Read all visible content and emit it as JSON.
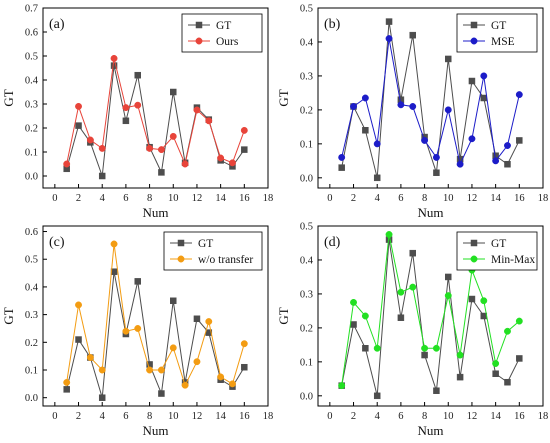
{
  "chart_data": [
    {
      "type": "line",
      "panel_label": "(a)",
      "xlabel": "Num",
      "ylabel": "GT",
      "xlim": [
        -1,
        18
      ],
      "ylim": [
        -0.05,
        0.7
      ],
      "xticks": [
        0,
        2,
        4,
        6,
        8,
        10,
        12,
        14,
        16,
        18
      ],
      "yticks": [
        0.0,
        0.1,
        0.2,
        0.3,
        0.4,
        0.5,
        0.6,
        0.7
      ],
      "legend_position": "top-right",
      "x": [
        1,
        2,
        3,
        4,
        5,
        6,
        7,
        8,
        9,
        10,
        11,
        12,
        13,
        14,
        15,
        16
      ],
      "series": [
        {
          "name": "GT",
          "color": "#4d4d4d",
          "marker": "square",
          "values": [
            0.03,
            0.21,
            0.14,
            0.0,
            0.46,
            0.23,
            0.42,
            0.12,
            0.015,
            0.35,
            0.055,
            0.285,
            0.235,
            0.065,
            0.04,
            0.11
          ]
        },
        {
          "name": "Ours",
          "color": "#e8443a",
          "marker": "circle",
          "values": [
            0.05,
            0.29,
            0.15,
            0.115,
            0.49,
            0.285,
            0.295,
            0.115,
            0.11,
            0.165,
            0.05,
            0.275,
            0.23,
            0.075,
            0.055,
            0.19
          ]
        }
      ]
    },
    {
      "type": "line",
      "panel_label": "(b)",
      "xlabel": "Num",
      "ylabel": "GT",
      "xlim": [
        -1,
        18
      ],
      "ylim": [
        -0.03,
        0.5
      ],
      "xticks": [
        0,
        2,
        4,
        6,
        8,
        10,
        12,
        14,
        16,
        18
      ],
      "yticks": [
        0.0,
        0.1,
        0.2,
        0.3,
        0.4,
        0.5
      ],
      "legend_position": "top-right",
      "x": [
        1,
        2,
        3,
        4,
        5,
        6,
        7,
        8,
        9,
        10,
        11,
        12,
        13,
        14,
        15,
        16
      ],
      "series": [
        {
          "name": "GT",
          "color": "#4d4d4d",
          "marker": "square",
          "values": [
            0.03,
            0.21,
            0.14,
            0.0,
            0.46,
            0.23,
            0.42,
            0.12,
            0.015,
            0.35,
            0.055,
            0.285,
            0.235,
            0.065,
            0.04,
            0.11
          ]
        },
        {
          "name": "MSE",
          "color": "#1c1cc8",
          "marker": "circle",
          "values": [
            0.06,
            0.21,
            0.235,
            0.1,
            0.41,
            0.215,
            0.21,
            0.11,
            0.06,
            0.2,
            0.04,
            0.115,
            0.3,
            0.05,
            0.095,
            0.245
          ]
        }
      ]
    },
    {
      "type": "line",
      "panel_label": "(c)",
      "xlabel": "Num",
      "ylabel": "GT",
      "xlim": [
        -1,
        18
      ],
      "ylim": [
        -0.03,
        0.62
      ],
      "xticks": [
        0,
        2,
        4,
        6,
        8,
        10,
        12,
        14,
        16,
        18
      ],
      "yticks": [
        0.0,
        0.1,
        0.2,
        0.3,
        0.4,
        0.5,
        0.6
      ],
      "legend_position": "top-right",
      "x": [
        1,
        2,
        3,
        4,
        5,
        6,
        7,
        8,
        9,
        10,
        11,
        12,
        13,
        14,
        15,
        16
      ],
      "series": [
        {
          "name": "GT",
          "color": "#4d4d4d",
          "marker": "square",
          "values": [
            0.03,
            0.21,
            0.145,
            0.0,
            0.455,
            0.23,
            0.42,
            0.12,
            0.015,
            0.35,
            0.055,
            0.285,
            0.235,
            0.065,
            0.04,
            0.11
          ]
        },
        {
          "name": "w/o transfer",
          "color": "#f39c12",
          "marker": "circle",
          "values": [
            0.055,
            0.335,
            0.145,
            0.1,
            0.555,
            0.24,
            0.25,
            0.1,
            0.1,
            0.18,
            0.045,
            0.13,
            0.275,
            0.075,
            0.05,
            0.195
          ]
        }
      ]
    },
    {
      "type": "line",
      "panel_label": "(d)",
      "xlabel": "Num",
      "ylabel": "GT",
      "xlim": [
        -1,
        18
      ],
      "ylim": [
        -0.03,
        0.5
      ],
      "xticks": [
        0,
        2,
        4,
        6,
        8,
        10,
        12,
        14,
        16,
        18
      ],
      "yticks": [
        0.0,
        0.1,
        0.2,
        0.3,
        0.4,
        0.5
      ],
      "legend_position": "top-right",
      "x": [
        1,
        2,
        3,
        4,
        5,
        6,
        7,
        8,
        9,
        10,
        11,
        12,
        13,
        14,
        15,
        16
      ],
      "series": [
        {
          "name": "GT",
          "color": "#4d4d4d",
          "marker": "square",
          "values": [
            0.03,
            0.21,
            0.14,
            0.0,
            0.46,
            0.23,
            0.42,
            0.12,
            0.015,
            0.35,
            0.055,
            0.285,
            0.235,
            0.065,
            0.04,
            0.11
          ]
        },
        {
          "name": "Min-Max",
          "color": "#22e022",
          "marker": "circle",
          "values": [
            0.03,
            0.275,
            0.235,
            0.14,
            0.475,
            0.305,
            0.32,
            0.14,
            0.14,
            0.295,
            0.12,
            0.37,
            0.28,
            0.095,
            0.19,
            0.22
          ]
        }
      ]
    }
  ]
}
